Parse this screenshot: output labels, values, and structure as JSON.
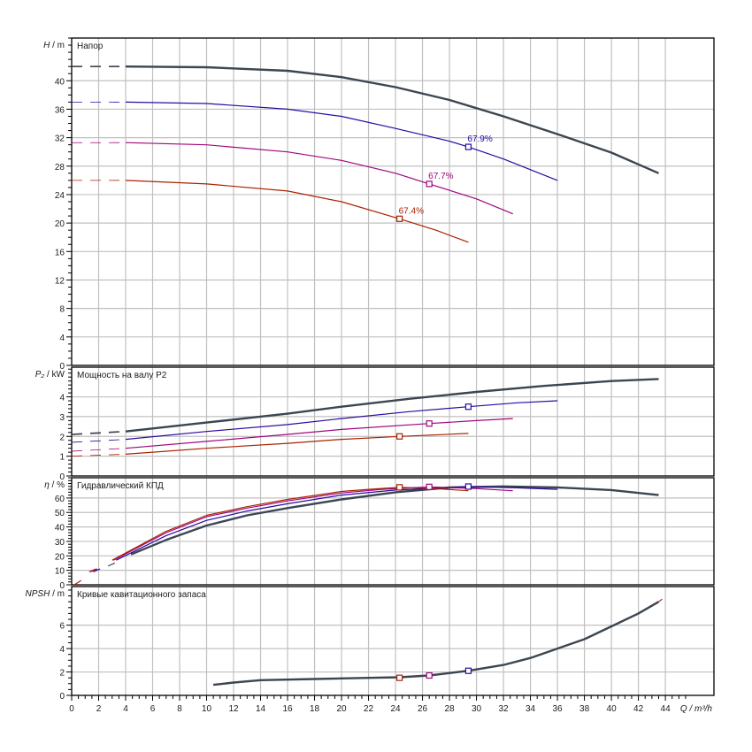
{
  "chart_data": {
    "type": "line",
    "x": {
      "label": "Q / m³/h",
      "range": [
        0,
        47.6
      ],
      "ticks": [
        0,
        2,
        4,
        6,
        8,
        10,
        12,
        14,
        16,
        18,
        20,
        22,
        24,
        26,
        28,
        30,
        32,
        34,
        36,
        38,
        40,
        42,
        44
      ]
    },
    "colors": {
      "dark": "#3c4650",
      "blue": "#2a0aa0",
      "purple": "#a0067e",
      "red": "#a82300"
    },
    "panels": [
      {
        "id": "head",
        "title": "Напор",
        "ylabel_it": "H",
        "ylabel_unit": " / m",
        "ylim": [
          0,
          46
        ],
        "ticks": [
          0,
          4,
          8,
          12,
          16,
          20,
          24,
          28,
          32,
          36,
          40
        ],
        "minor": 1,
        "series": [
          {
            "name": "dark",
            "x": [
              0,
              4,
              10,
              16,
              20,
              24,
              28,
              32,
              36,
              40,
              43.5
            ],
            "y": [
              42,
              42,
              41.9,
              41.4,
              40.5,
              39.1,
              37.3,
              35,
              32.5,
              29.9,
              27
            ]
          },
          {
            "name": "blue",
            "x": [
              0,
              4,
              10,
              16,
              20,
              24,
              28,
              29.4,
              32,
              36
            ],
            "y": [
              37,
              37,
              36.8,
              36,
              35,
              33.3,
              31.5,
              30.7,
              29,
              26
            ]
          },
          {
            "name": "purple",
            "x": [
              0,
              4,
              10,
              16,
              20,
              24,
              26.5,
              30,
              32.7
            ],
            "y": [
              31.3,
              31.3,
              31,
              30,
              28.8,
              27,
              25.5,
              23.4,
              21.3
            ]
          },
          {
            "name": "red",
            "x": [
              0,
              4,
              10,
              16,
              20,
              24.3,
              27,
              29.4
            ],
            "y": [
              26,
              26,
              25.5,
              24.5,
              23,
              20.6,
              19,
              17.3
            ]
          }
        ],
        "points": [
          {
            "series": "blue",
            "x": 29.4,
            "y": 30.7,
            "label": "67.9%"
          },
          {
            "series": "purple",
            "x": 26.5,
            "y": 25.5,
            "label": "67.7%"
          },
          {
            "series": "red",
            "x": 24.3,
            "y": 20.6,
            "label": "67.4%"
          }
        ]
      },
      {
        "id": "power",
        "title": "Мощность на валу P2",
        "ylabel_it": "P₂",
        "ylabel_unit": " / kW",
        "ylim": [
          0,
          5.5
        ],
        "ticks": [
          0,
          1,
          2,
          3,
          4
        ],
        "minor": 0.2,
        "series": [
          {
            "name": "dark",
            "x": [
              0,
              4,
              10,
              16,
              20,
              25,
              30,
              35,
              40,
              43.5
            ],
            "y": [
              2.1,
              2.25,
              2.7,
              3.15,
              3.5,
              3.9,
              4.25,
              4.55,
              4.8,
              4.9
            ]
          },
          {
            "name": "blue",
            "x": [
              0,
              4,
              10,
              16,
              20,
              25,
              29.4,
              33,
              36
            ],
            "y": [
              1.7,
              1.85,
              2.25,
              2.6,
              2.9,
              3.25,
              3.5,
              3.7,
              3.8
            ]
          },
          {
            "name": "purple",
            "x": [
              0,
              4,
              10,
              16,
              20,
              26.5,
              30,
              32.7
            ],
            "y": [
              1.25,
              1.4,
              1.75,
              2.1,
              2.35,
              2.65,
              2.8,
              2.9
            ]
          },
          {
            "name": "red",
            "x": [
              0,
              4,
              10,
              16,
              20,
              24.3,
              29.4
            ],
            "y": [
              1.0,
              1.1,
              1.4,
              1.65,
              1.85,
              2.0,
              2.15
            ]
          }
        ],
        "points": [
          {
            "series": "blue",
            "x": 29.4,
            "y": 3.5
          },
          {
            "series": "purple",
            "x": 26.5,
            "y": 2.65
          },
          {
            "series": "red",
            "x": 24.3,
            "y": 2.0
          }
        ]
      },
      {
        "id": "eff",
        "title": "Гидравлический КПД",
        "ylabel_it": "η",
        "ylabel_unit": " / %",
        "ylim": [
          0,
          74
        ],
        "ticks": [
          0,
          10,
          20,
          30,
          40,
          50,
          60
        ],
        "minor": 2,
        "series": [
          {
            "name": "dark",
            "x": [
              4.4,
              7,
              10,
              13,
              16,
              20,
              24,
              28,
              32,
              36,
              40,
              43.5
            ],
            "y": [
              21,
              31,
              41,
              48,
              53,
              59,
              64,
              67.3,
              68,
              67.3,
              65.5,
              62
            ]
          },
          {
            "name": "blue",
            "x": [
              3.3,
              7,
              10,
              13,
              16,
              20,
              24,
              29.4,
              33,
              36
            ],
            "y": [
              17,
              34,
              44.5,
              51,
              56,
              62,
              65.5,
              67.9,
              67,
              66
            ]
          },
          {
            "name": "purple",
            "x": [
              3.1,
              7,
              10,
              13,
              16,
              20,
              23,
              26.5,
              30,
              32.7
            ],
            "y": [
              17,
              36,
              47,
              53,
              58,
              63.5,
              66,
              67.7,
              66.5,
              65
            ]
          },
          {
            "name": "red",
            "x": [
              3,
              7,
              10,
              13,
              16,
              20,
              22,
              24.3,
              27,
              29.4
            ],
            "y": [
              17,
              37,
              48,
              54,
              59,
              64.5,
              66,
              67.4,
              66.5,
              65
            ]
          }
        ],
        "points": [
          {
            "series": "blue",
            "x": 29.4,
            "y": 67.9
          },
          {
            "series": "purple",
            "x": 26.5,
            "y": 67.7
          },
          {
            "series": "red",
            "x": 24.3,
            "y": 67.4
          }
        ]
      },
      {
        "id": "npsh",
        "title": "Кривые кавитационного запаса",
        "ylabel_it": "NPSH",
        "ylabel_unit": " / m",
        "ylim": [
          0,
          9.3
        ],
        "ticks": [
          0,
          2,
          4,
          6
        ],
        "minor": 0.5,
        "series": [
          {
            "name": "dark",
            "x": [
              10.5,
              12,
              14,
              18,
              22,
              24.3,
              26.5,
              29.4,
              32,
              34,
              36,
              38,
              40,
              42,
              43.5
            ],
            "y": [
              0.9,
              1.1,
              1.3,
              1.4,
              1.5,
              1.55,
              1.7,
              2.1,
              2.6,
              3.2,
              4,
              4.8,
              5.9,
              7,
              8
            ]
          }
        ],
        "points": [
          {
            "series": "red",
            "x": 24.3,
            "y": 1.5
          },
          {
            "series": "purple",
            "x": 26.5,
            "y": 1.7
          },
          {
            "series": "blue",
            "x": 29.4,
            "y": 2.1
          }
        ]
      }
    ]
  }
}
